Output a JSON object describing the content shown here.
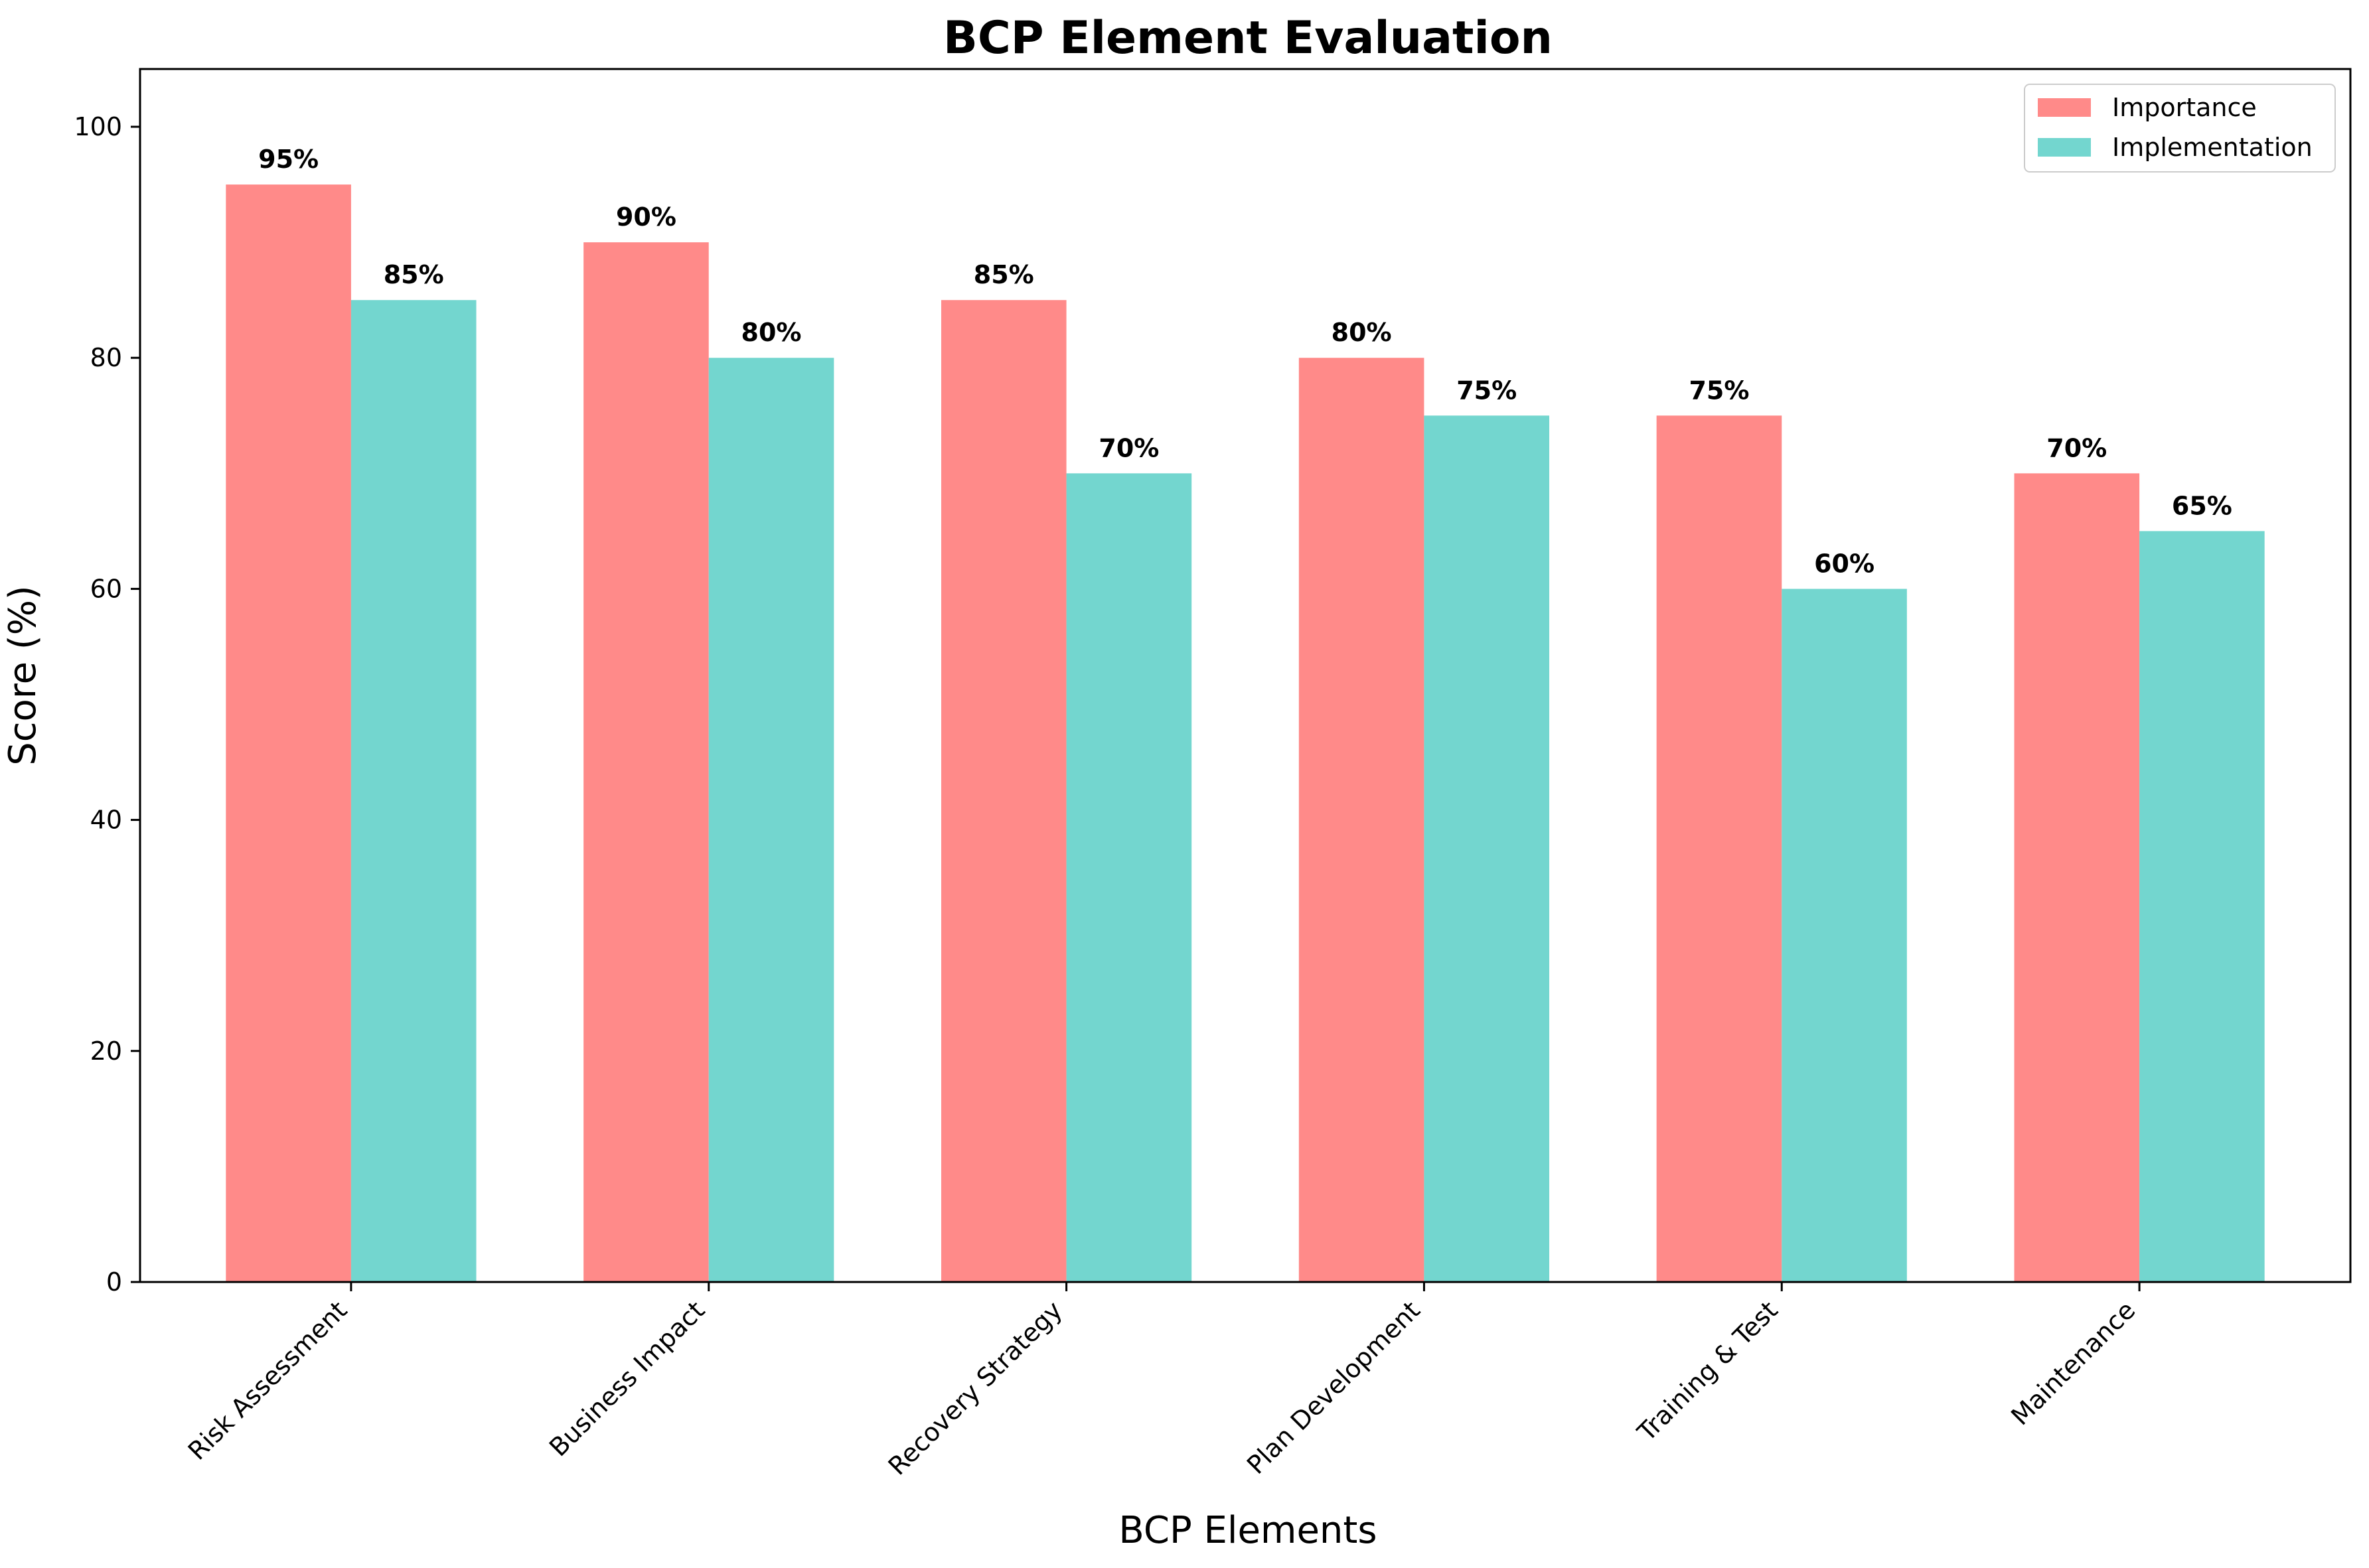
{
  "chart_data": {
    "type": "bar",
    "title": "BCP Element Evaluation",
    "xlabel": "BCP Elements",
    "ylabel": "Score (%)",
    "categories": [
      "Risk Assessment",
      "Business Impact",
      "Recovery Strategy",
      "Plan Development",
      "Training & Test",
      "Maintenance"
    ],
    "series": [
      {
        "name": "Importance",
        "values": [
          95,
          90,
          85,
          80,
          75,
          70
        ],
        "color": "#FF8A89"
      },
      {
        "name": "Implementation",
        "values": [
          85,
          80,
          70,
          75,
          60,
          65
        ],
        "color": "#73D6CF"
      }
    ],
    "value_suffix": "%",
    "ylim": [
      0,
      105
    ],
    "yticks": [
      0,
      20,
      40,
      60,
      80,
      100
    ],
    "grid": false,
    "legend_position": "top-right"
  }
}
